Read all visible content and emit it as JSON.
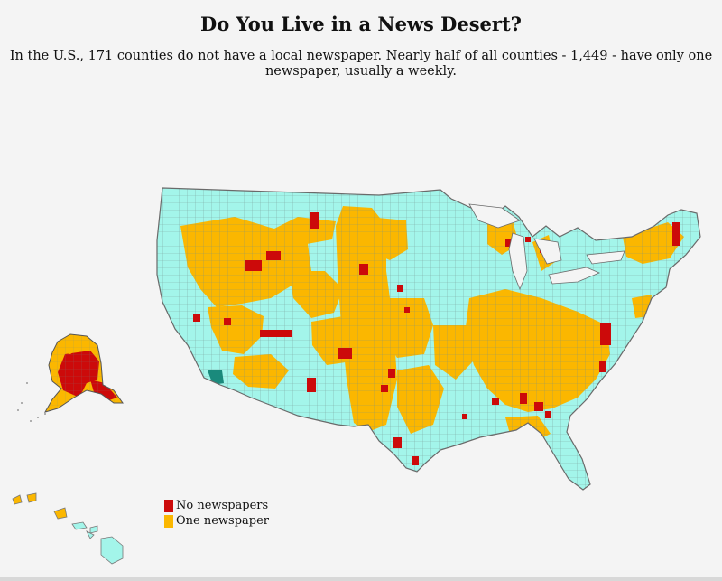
{
  "header": {
    "title": "Do You Live in a News Desert?",
    "subtitle": "In the U.S., 171 counties do not have a local newspaper. Nearly half of all counties - 1,449 - have only one newspaper, usually a weekly."
  },
  "legend": {
    "items": [
      {
        "label": "No newspapers",
        "color": "#cc0a0a"
      },
      {
        "label": "One newspaper",
        "color": "#fbb700"
      }
    ]
  },
  "colors": {
    "no_newspapers": "#cc0a0a",
    "one_newspaper": "#fbb700",
    "two_or_more": "#a3f5ea",
    "background": "#f4f4f4",
    "border": "#777777"
  }
}
